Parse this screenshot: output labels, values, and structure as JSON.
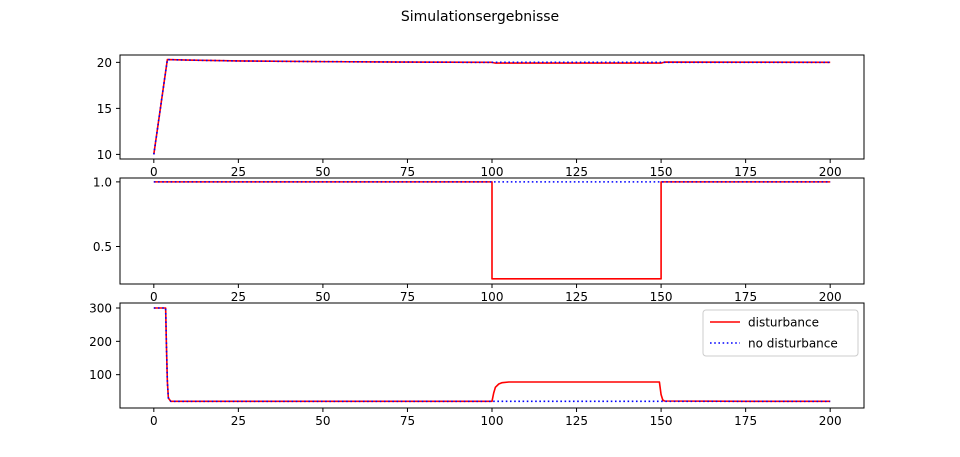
{
  "figure": {
    "title": "Simulationsergebnisse"
  },
  "legend": {
    "placement": "top-right",
    "entries": [
      "disturbance",
      "no disturbance"
    ]
  },
  "colors": {
    "disturbance": "#ff0000",
    "no_disturbance": "#0000ff",
    "axes": "#000000",
    "background": "#ffffff"
  },
  "chart_data": [
    {
      "type": "line",
      "title": "Simulationsergebnisse",
      "xlim": [
        -10,
        210
      ],
      "ylim": [
        9.5,
        20.8
      ],
      "xticks": [
        0,
        25,
        50,
        75,
        100,
        125,
        150,
        175,
        200
      ],
      "yticks": [
        10,
        15,
        20
      ],
      "grid": false,
      "series": [
        {
          "name": "disturbance",
          "style": "solid",
          "color": "#ff0000",
          "x": [
            0,
            4,
            10,
            25,
            50,
            75,
            99,
            100,
            101,
            125,
            149,
            150,
            151,
            175,
            200
          ],
          "y": [
            10,
            20.3,
            20.25,
            20.15,
            20.08,
            20.03,
            20.0,
            20.0,
            19.92,
            19.92,
            19.92,
            19.92,
            20.03,
            20.02,
            20.0
          ]
        },
        {
          "name": "no disturbance",
          "style": "dotted",
          "color": "#0000ff",
          "x": [
            0,
            4,
            10,
            25,
            50,
            75,
            100,
            125,
            150,
            175,
            200
          ],
          "y": [
            10,
            20.3,
            20.25,
            20.15,
            20.08,
            20.03,
            20.0,
            20.0,
            20.0,
            20.0,
            20.0
          ]
        }
      ]
    },
    {
      "type": "line",
      "xlim": [
        -10,
        210
      ],
      "ylim": [
        0.21,
        1.03
      ],
      "xticks": [
        0,
        25,
        50,
        75,
        100,
        125,
        150,
        175,
        200
      ],
      "yticks": [
        0.5,
        1.0
      ],
      "grid": false,
      "series": [
        {
          "name": "disturbance",
          "style": "solid",
          "color": "#ff0000",
          "x": [
            0,
            100,
            100,
            150,
            150,
            200
          ],
          "y": [
            1.0,
            1.0,
            0.25,
            0.25,
            1.0,
            1.0
          ]
        },
        {
          "name": "no disturbance",
          "style": "dotted",
          "color": "#0000ff",
          "x": [
            0,
            200
          ],
          "y": [
            1.0,
            1.0
          ]
        }
      ]
    },
    {
      "type": "line",
      "xlim": [
        -10,
        210
      ],
      "ylim": [
        0,
        315
      ],
      "xticks": [
        0,
        25,
        50,
        75,
        100,
        125,
        150,
        175,
        200
      ],
      "yticks": [
        100,
        200,
        300
      ],
      "grid": false,
      "legend": {
        "placement": "top-right"
      },
      "series": [
        {
          "name": "disturbance",
          "style": "solid",
          "color": "#ff0000",
          "x": [
            0,
            3.5,
            3.7,
            4,
            4.3,
            5,
            100,
            100.5,
            101,
            102,
            103,
            105,
            110,
            125,
            149.5,
            150,
            150.5,
            151,
            175,
            200
          ],
          "y": [
            300,
            300,
            200,
            80,
            30,
            20,
            20,
            45,
            62,
            72,
            76,
            78,
            78,
            78,
            78,
            40,
            24,
            21,
            20,
            20
          ]
        },
        {
          "name": "no disturbance",
          "style": "dotted",
          "color": "#0000ff",
          "x": [
            0,
            3.5,
            3.7,
            4,
            4.3,
            5,
            200
          ],
          "y": [
            300,
            300,
            200,
            80,
            30,
            20,
            20
          ]
        }
      ]
    }
  ]
}
